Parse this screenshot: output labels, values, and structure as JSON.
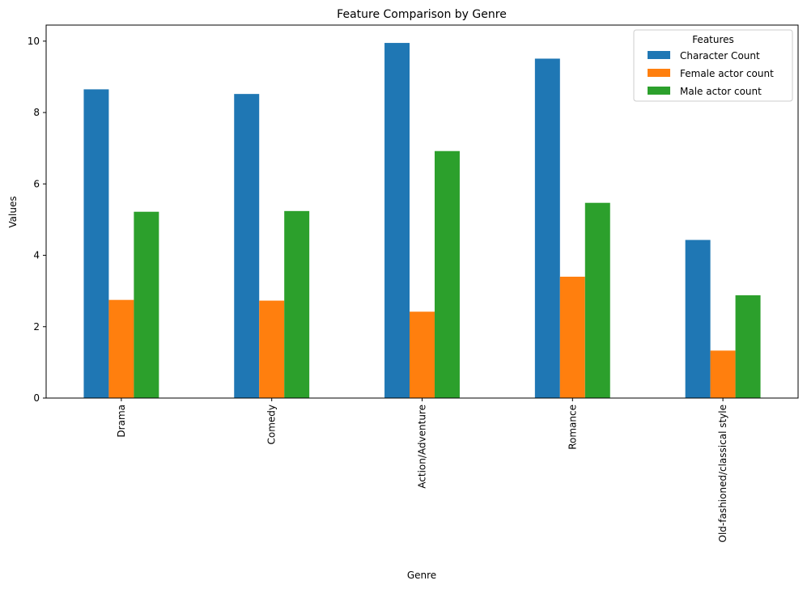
{
  "chart_data": {
    "type": "bar",
    "title": "Feature Comparison by Genre",
    "xlabel": "Genre",
    "ylabel": "Values",
    "ylim": [
      0,
      10.45
    ],
    "yticks": [
      0,
      2,
      4,
      6,
      8,
      10
    ],
    "grid": false,
    "legend": {
      "title": "Features",
      "placement": "top-right"
    },
    "categories": [
      "Drama",
      "Comedy",
      "Action/Adventure",
      "Romance",
      "Old-fashioned/classical style"
    ],
    "series": [
      {
        "name": "Character Count",
        "color": "#1f77b4",
        "values": [
          8.65,
          8.52,
          9.95,
          9.51,
          4.43
        ]
      },
      {
        "name": "Female actor count",
        "color": "#ff7f0e",
        "values": [
          2.75,
          2.73,
          2.42,
          3.4,
          1.33
        ]
      },
      {
        "name": "Male actor count",
        "color": "#2ca02c",
        "values": [
          5.22,
          5.24,
          6.92,
          5.47,
          2.88
        ]
      }
    ]
  }
}
